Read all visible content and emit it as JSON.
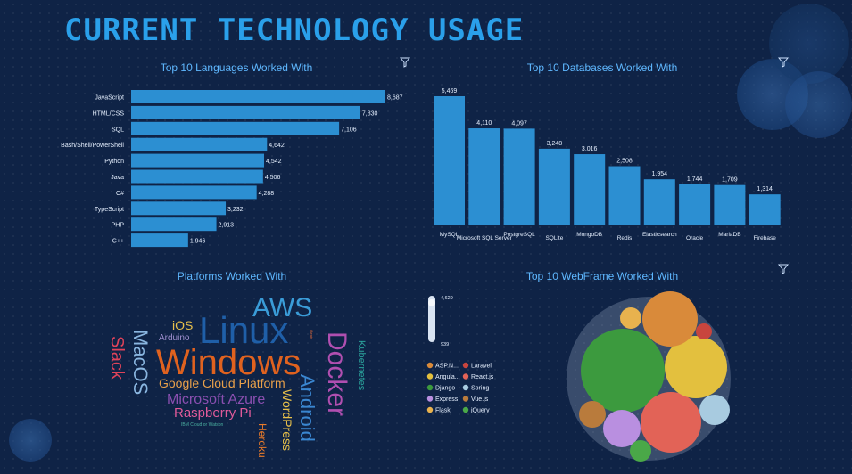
{
  "dashboard": {
    "title": "CURRENT TECHNOLOGY USAGE"
  },
  "panels": {
    "languages_title": "Top 10 Languages Worked With",
    "databases_title": "Top 10 Databases Worked With",
    "platforms_title": "Platforms Worked With",
    "webframe_title": "Top 10 WebFrame Worked With"
  },
  "colors": {
    "bar": "#2c8fd2",
    "accent": "#2aa0ea",
    "background": "#0f2346"
  },
  "chart_data": [
    {
      "type": "bar",
      "orientation": "horizontal",
      "title": "Top 10 Languages Worked With",
      "categories": [
        "JavaScript",
        "HTML/CSS",
        "SQL",
        "Bash/Shell/PowerShell",
        "Python",
        "Java",
        "C#",
        "TypeScript",
        "PHP",
        "C++"
      ],
      "values": [
        8687,
        7830,
        7106,
        4642,
        4542,
        4506,
        4288,
        3232,
        2913,
        1946
      ],
      "value_labels": [
        "8,687",
        "7,830",
        "7,106",
        "4,642",
        "4,542",
        "4,506",
        "4,288",
        "3,232",
        "2,913",
        "1,946"
      ]
    },
    {
      "type": "bar",
      "title": "Top 10 Databases Worked With",
      "categories": [
        "MySQL",
        "Microsoft SQL Server",
        "PostgreSQL",
        "SQLite",
        "MongoDB",
        "Redis",
        "Elasticsearch",
        "Oracle",
        "MariaDB",
        "Firebase"
      ],
      "values": [
        5469,
        4110,
        4097,
        3248,
        3016,
        2508,
        1954,
        1744,
        1709,
        1314
      ],
      "value_labels": [
        "5,469",
        "4,110",
        "4,097",
        "3,248",
        "3,016",
        "2,508",
        "1,954",
        "1,744",
        "1,709",
        "1,314"
      ]
    },
    {
      "type": "bubble",
      "title": "Top 10 WebFrame Worked With",
      "legend": [
        {
          "name": "ASP.N...",
          "color": "#d98a3a"
        },
        {
          "name": "Laravel",
          "color": "#c8453e"
        },
        {
          "name": "Angula...",
          "color": "#e3c03e"
        },
        {
          "name": "React.js",
          "color": "#e26357"
        },
        {
          "name": "Django",
          "color": "#3c9a3e"
        },
        {
          "name": "Spring",
          "color": "#a8cbe0"
        },
        {
          "name": "Express",
          "color": "#b98fe0"
        },
        {
          "name": "Vue.js",
          "color": "#b97b3c"
        },
        {
          "name": "Flask",
          "color": "#e8b24e"
        },
        {
          "name": "jQuery",
          "color": "#4aa848"
        }
      ],
      "size_scale": {
        "max_label": "4,629",
        "min_label": "939"
      }
    }
  ],
  "wordcloud": [
    {
      "text": "Windows",
      "color": "#e0621f",
      "orient": "h",
      "size": 40
    },
    {
      "text": "Linux",
      "color": "#1f5fa8",
      "orient": "h",
      "size": 42
    },
    {
      "text": "AWS",
      "color": "#3a9cd8",
      "orient": "h",
      "size": 30
    },
    {
      "text": "Docker",
      "color": "#b04fb0",
      "orient": "v",
      "size": 30
    },
    {
      "text": "MacOS",
      "color": "#8ab6e0",
      "orient": "v",
      "size": 22
    },
    {
      "text": "Slack",
      "color": "#e0435a",
      "orient": "v",
      "size": 20
    },
    {
      "text": "Android",
      "color": "#3a86d0",
      "orient": "v",
      "size": 22
    },
    {
      "text": "Google Cloud Platform",
      "color": "#e8a04a",
      "orient": "h",
      "size": 14
    },
    {
      "text": "Microsoft Azure",
      "color": "#8a4fb0",
      "orient": "h",
      "size": 16
    },
    {
      "text": "Raspberry Pi",
      "color": "#e05a9a",
      "orient": "h",
      "size": 15
    },
    {
      "text": "WordPress",
      "color": "#e8c04a",
      "orient": "v",
      "size": 14
    },
    {
      "text": "Heroku",
      "color": "#e87a2a",
      "orient": "v",
      "size": 12
    },
    {
      "text": "Kubernetes",
      "color": "#2aa09a",
      "orient": "v",
      "size": 11
    },
    {
      "text": "iOS",
      "color": "#e8c04a",
      "orient": "h",
      "size": 14
    },
    {
      "text": "Arduino",
      "color": "#a090d0",
      "orient": "h",
      "size": 10
    },
    {
      "text": "IBM Cloud or Watson",
      "color": "#4ab0a0",
      "orient": "h",
      "size": 5
    },
    {
      "text": "iBeaty",
      "color": "#e06a3a",
      "orient": "v",
      "size": 4
    }
  ]
}
